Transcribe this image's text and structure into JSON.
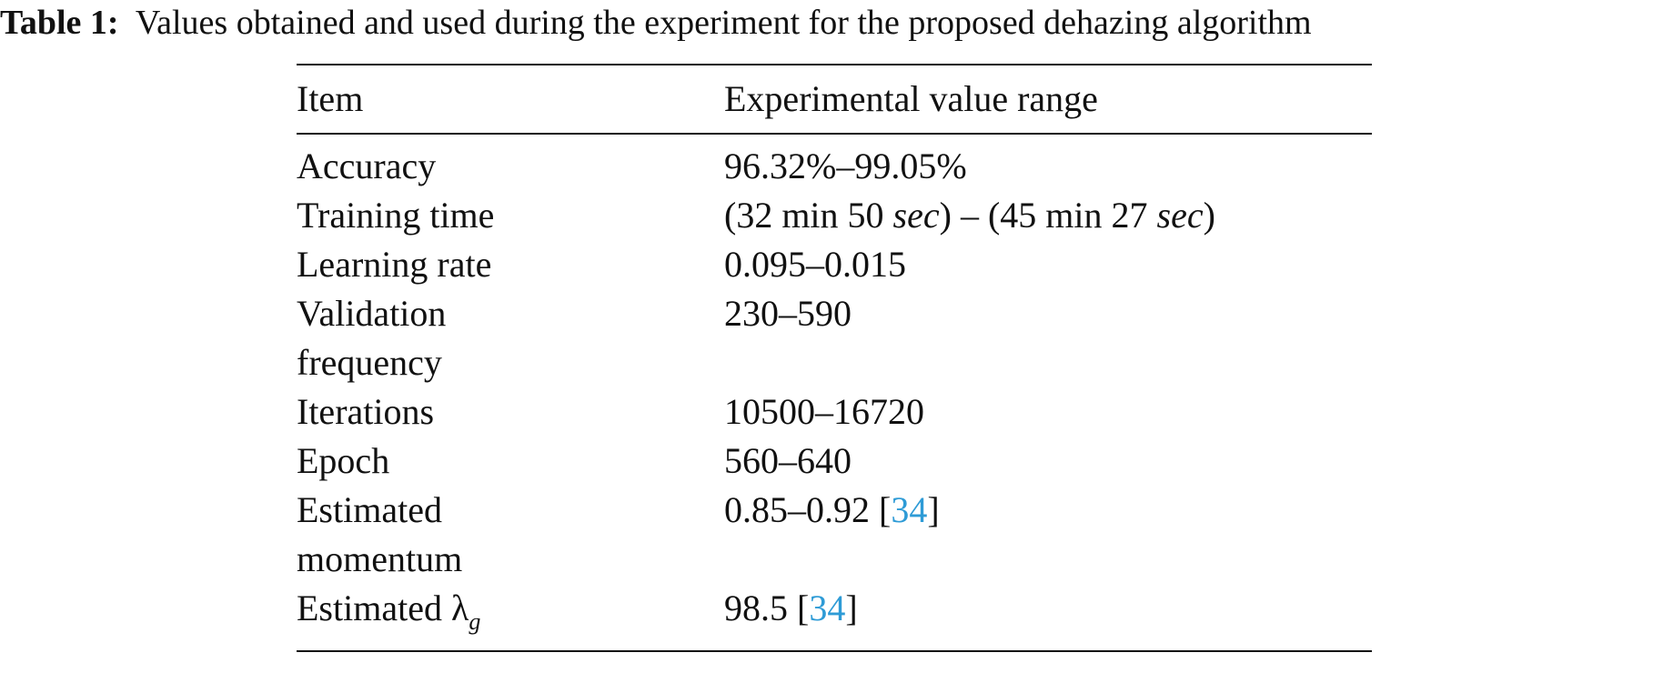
{
  "caption": {
    "label": "Table 1:",
    "text": "Values obtained and used during the experiment for the proposed dehazing algorithm"
  },
  "table": {
    "headers": [
      "Item",
      "Experimental value range"
    ],
    "rows": [
      {
        "item": "Accuracy",
        "value": "96.32%–99.05%"
      },
      {
        "item": "Training time",
        "value_parts": {
          "open1": "(32  min 50 ",
          "unit1": "sec",
          "mid": ") – (45  min 27 ",
          "unit2": "sec",
          "close": ")"
        }
      },
      {
        "item": "Learning rate",
        "value": "0.095–0.015"
      },
      {
        "item_line1": "Validation",
        "item_line2": "frequency",
        "value": "230–590"
      },
      {
        "item": "Iterations",
        "value": "10500–16720"
      },
      {
        "item": "Epoch",
        "value": "560–640"
      },
      {
        "item_line1": "Estimated",
        "item_line2": "momentum",
        "value": "0.85–0.92 [",
        "ref": "34",
        "value_end": "]"
      },
      {
        "item_prefix": "Estimated λ",
        "item_sub": "g",
        "value": "98.5 [",
        "ref": "34",
        "value_end": "]"
      }
    ]
  },
  "colors": {
    "text": "#111111",
    "reference_link": "#2e9bd6"
  }
}
